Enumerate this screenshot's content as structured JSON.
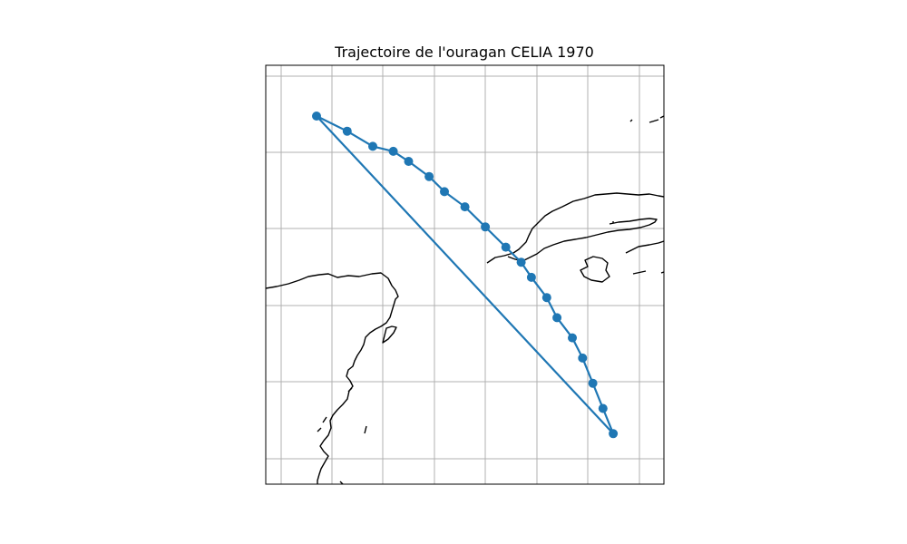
{
  "map": {
    "title": "Trajectoire de l'ouragan CELIA 1970",
    "colors": {
      "track": "#1f77b4",
      "coast": "#000000",
      "grid": "#b0b0b0"
    },
    "grid": true
  },
  "chart_data": {
    "type": "scatter",
    "title": "Trajectoire de l'ouragan CELIA 1970",
    "xlabel": "",
    "ylabel": "",
    "series": [
      {
        "points": [
          [
            -89.5,
            28.2
          ],
          [
            -88.9,
            27.9
          ],
          [
            -88.4,
            27.6
          ],
          [
            -88.0,
            27.5
          ],
          [
            -87.7,
            27.3
          ],
          [
            -87.3,
            27.0
          ],
          [
            -87.0,
            26.7
          ],
          [
            -86.6,
            26.4
          ],
          [
            -86.2,
            26.0
          ],
          [
            -85.8,
            25.6
          ],
          [
            -85.5,
            25.3
          ],
          [
            -85.3,
            25.0
          ],
          [
            -85.0,
            24.6
          ],
          [
            -84.8,
            24.2
          ],
          [
            -84.5,
            23.8
          ],
          [
            -84.3,
            23.4
          ],
          [
            -84.1,
            22.9
          ],
          [
            -83.9,
            22.4
          ],
          [
            -83.7,
            21.9
          ]
        ]
      }
    ]
  }
}
